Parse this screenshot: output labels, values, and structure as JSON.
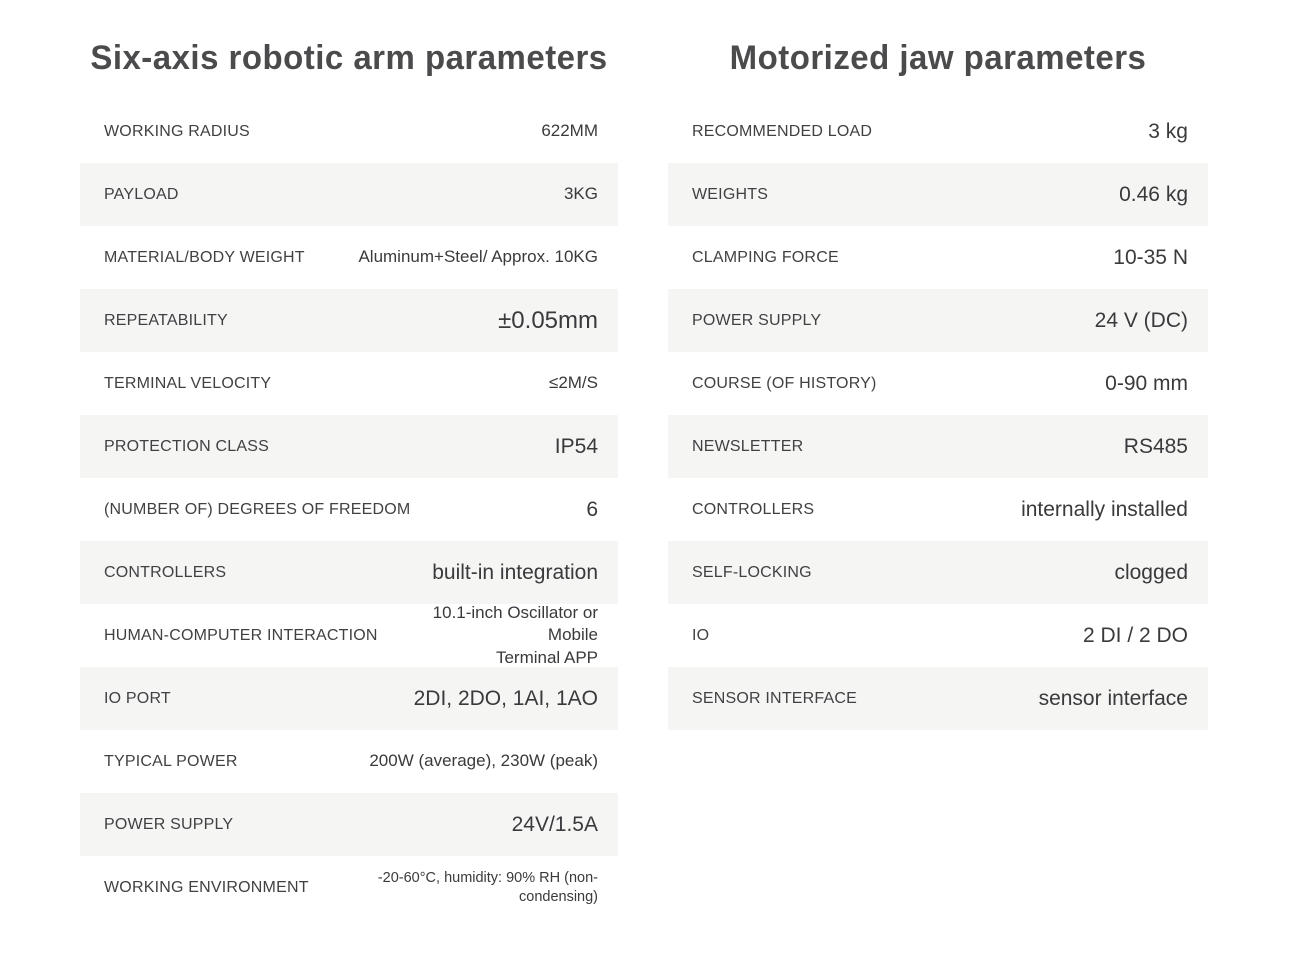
{
  "colors": {
    "page_background": "#ffffff",
    "row_alt_background": "#f5f5f4",
    "title_text": "#4b4b4d",
    "label_text": "#414144",
    "value_text": "#3a3a3c"
  },
  "tables": [
    {
      "title": "Six-axis robotic arm parameters",
      "rows": [
        {
          "label": "WORKING RADIUS",
          "value": "622MM",
          "size": "md"
        },
        {
          "label": "PAYLOAD",
          "value": "3KG",
          "size": "md"
        },
        {
          "label": "MATERIAL/BODY WEIGHT",
          "value": "Aluminum+Steel/ Approx. 10KG",
          "size": "md"
        },
        {
          "label": "REPEATABILITY",
          "value": "±0.05mm",
          "size": "xl"
        },
        {
          "label": "TERMINAL VELOCITY",
          "value": "≤2M/S",
          "size": "md"
        },
        {
          "label": "PROTECTION CLASS",
          "value": "IP54",
          "size": "lg"
        },
        {
          "label": "(NUMBER OF) DEGREES OF FREEDOM",
          "value": "6",
          "size": "lg"
        },
        {
          "label": "CONTROLLERS",
          "value": "built-in integration",
          "size": "lg"
        },
        {
          "label": "HUMAN-COMPUTER INTERACTION",
          "value": "10.1-inch Oscillator or Mobile\nTerminal APP",
          "size": "md"
        },
        {
          "label": "IO PORT",
          "value": "2DI、2DO、1AI、1AO",
          "size": "lg"
        },
        {
          "label": "TYPICAL POWER",
          "value": "200W (average), 230W (peak)",
          "size": "md"
        },
        {
          "label": "POWER SUPPLY",
          "value": "24V/1.5A",
          "size": "lg"
        },
        {
          "label": "WORKING ENVIRONMENT",
          "value": "-20-60°C, humidity: 90% RH (non-condensing)",
          "size": "sm"
        }
      ]
    },
    {
      "title": "Motorized jaw parameters",
      "rows": [
        {
          "label": "RECOMMENDED LOAD",
          "value": "3 kg",
          "size": "lg"
        },
        {
          "label": "WEIGHTS",
          "value": "0.46 kg",
          "size": "lg"
        },
        {
          "label": "CLAMPING FORCE",
          "value": "10-35 N",
          "size": "lg"
        },
        {
          "label": "POWER SUPPLY",
          "value": "24 V (DC)",
          "size": "lg"
        },
        {
          "label": "COURSE (OF HISTORY)",
          "value": "0-90 mm",
          "size": "lg"
        },
        {
          "label": "NEWSLETTER",
          "value": "RS485",
          "size": "lg"
        },
        {
          "label": "CONTROLLERS",
          "value": "internally installed",
          "size": "lg"
        },
        {
          "label": "SELF-LOCKING",
          "value": "clogged",
          "size": "lg"
        },
        {
          "label": "IO",
          "value": "2 DI / 2 DO",
          "size": "lg"
        },
        {
          "label": "SENSOR INTERFACE",
          "value": "sensor interface",
          "size": "lg"
        }
      ]
    }
  ]
}
